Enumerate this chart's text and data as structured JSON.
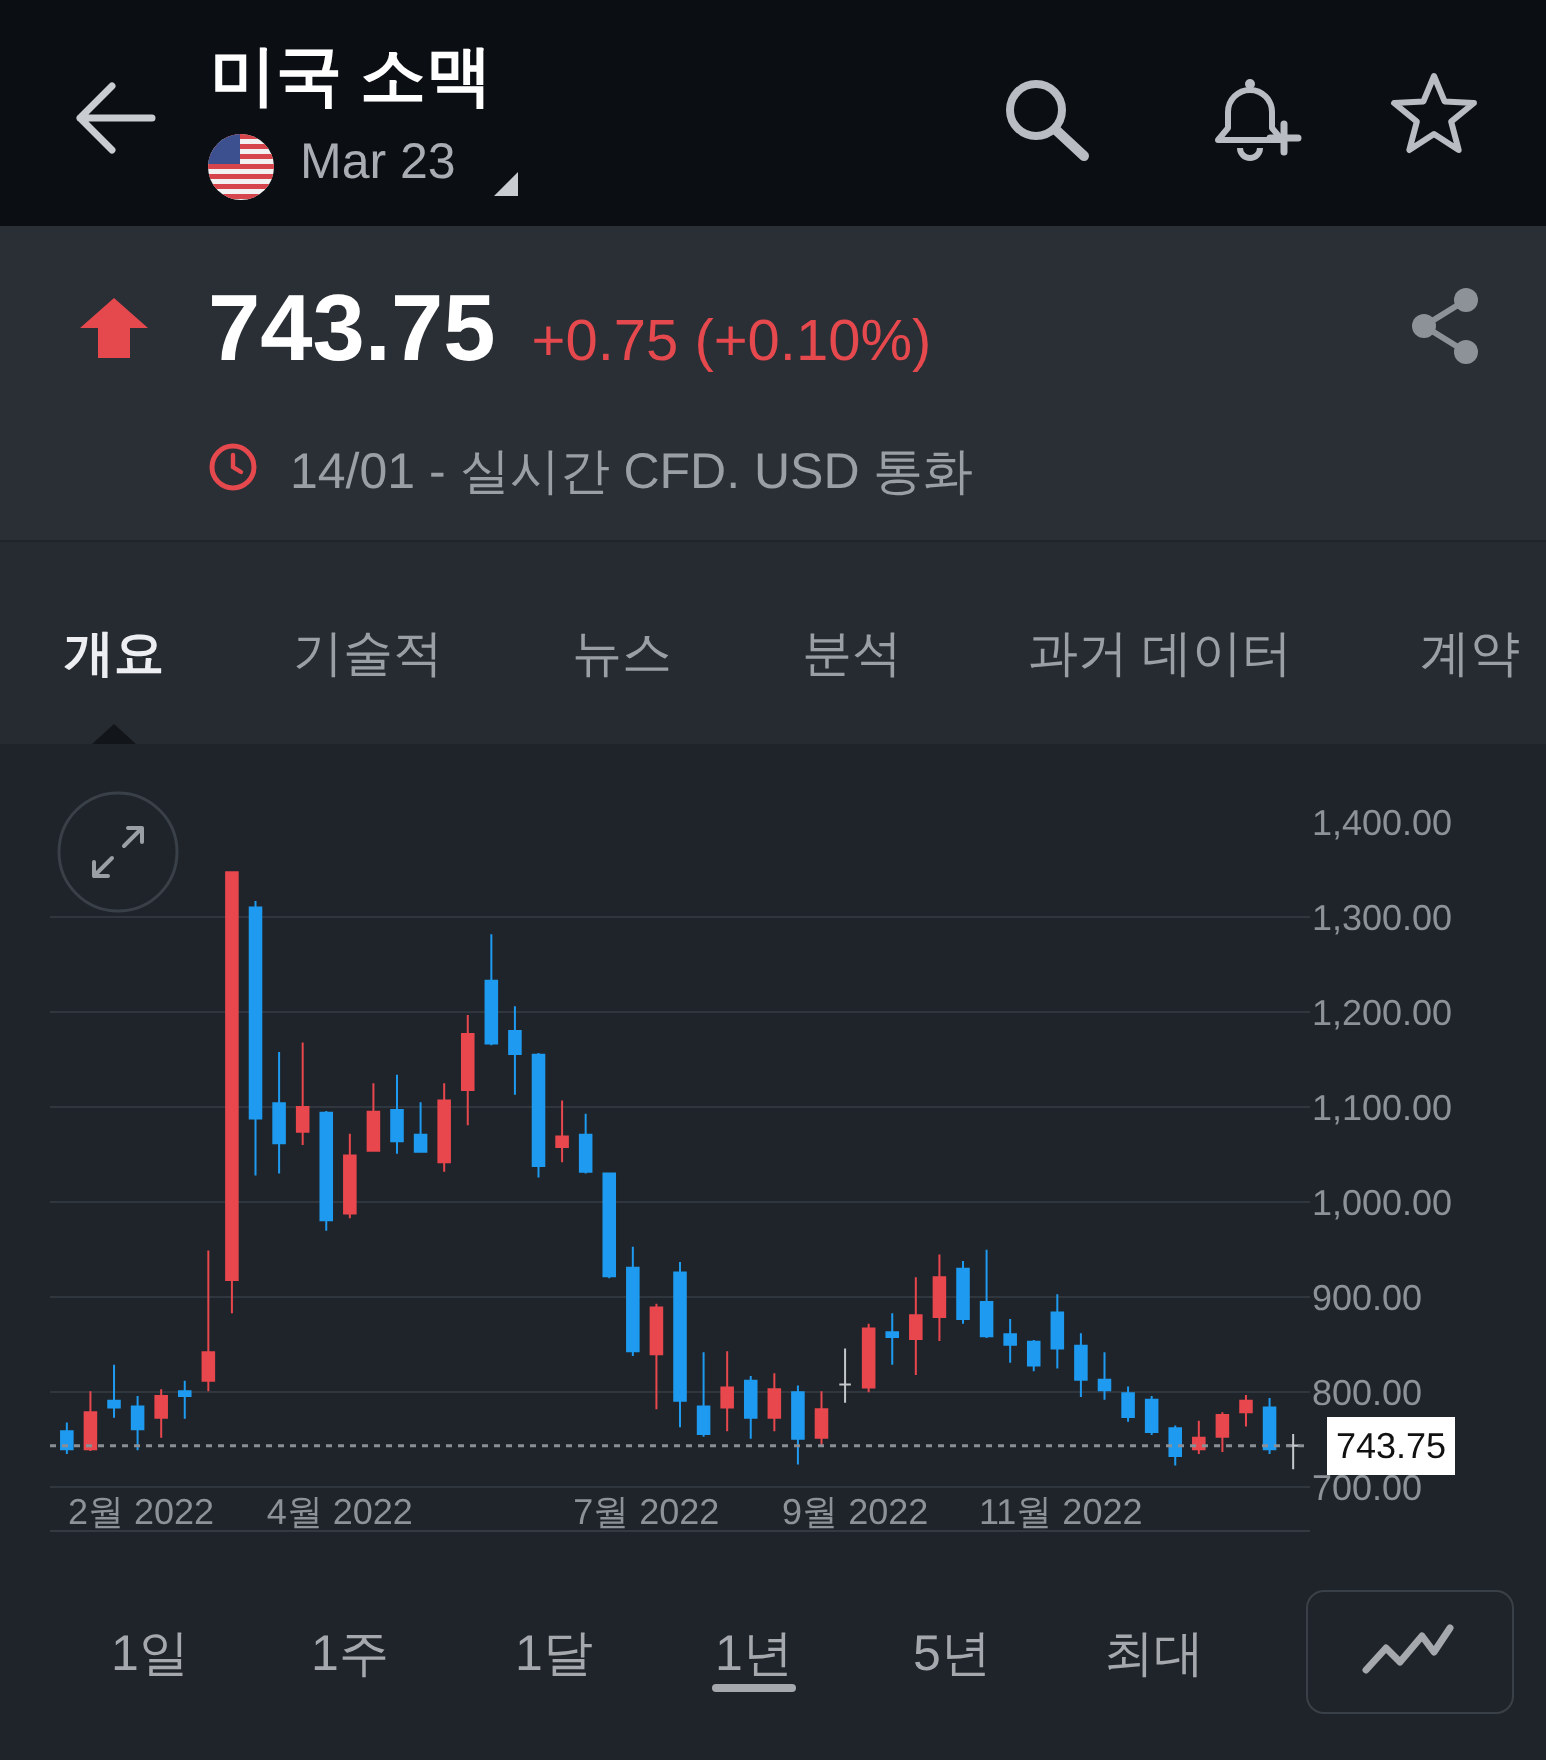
{
  "chart_data": {
    "type": "candlestick",
    "title": "미국 소맥",
    "subtitle": "Mar 23",
    "annotations": [
      "743.75",
      "+0.75 (+0.10%)",
      "14/01 - 실시간 CFD. USD 통화",
      "개요",
      "기술적",
      "뉴스",
      "분석",
      "과거 데이터",
      "계약",
      "1일",
      "1주",
      "1달",
      "1년",
      "5년",
      "최대"
    ],
    "x": [
      "2022-01-10",
      "2022-01-17",
      "2022-01-24",
      "2022-01-31",
      "2022-02-07",
      "2022-02-14",
      "2022-02-21",
      "2022-02-28",
      "2022-03-07",
      "2022-03-14",
      "2022-03-21",
      "2022-03-28",
      "2022-04-04",
      "2022-04-11",
      "2022-04-18",
      "2022-04-25",
      "2022-05-02",
      "2022-05-09",
      "2022-05-16",
      "2022-05-23",
      "2022-05-30",
      "2022-06-06",
      "2022-06-13",
      "2022-06-20",
      "2022-06-27",
      "2022-07-04",
      "2022-07-11",
      "2022-07-18",
      "2022-07-25",
      "2022-08-01",
      "2022-08-08",
      "2022-08-15",
      "2022-08-22",
      "2022-08-29",
      "2022-09-05",
      "2022-09-12",
      "2022-09-19",
      "2022-09-26",
      "2022-10-03",
      "2022-10-10",
      "2022-10-17",
      "2022-10-24",
      "2022-10-31",
      "2022-11-07",
      "2022-11-14",
      "2022-11-21",
      "2022-11-28",
      "2022-12-05",
      "2022-12-12",
      "2022-12-19",
      "2022-12-26",
      "2023-01-02",
      "2023-01-09"
    ],
    "ohlc": [
      [
        759,
        768,
        735,
        740
      ],
      [
        740,
        801,
        738,
        779
      ],
      [
        791,
        829,
        773,
        784
      ],
      [
        785,
        796,
        739,
        761
      ],
      [
        773,
        803,
        752,
        796
      ],
      [
        801,
        812,
        772,
        796
      ],
      [
        812,
        949,
        801,
        842
      ],
      [
        918,
        1347,
        883,
        1347
      ],
      [
        1310,
        1317,
        1028,
        1088
      ],
      [
        1104,
        1158,
        1030,
        1062
      ],
      [
        1074,
        1168,
        1060,
        1100
      ],
      [
        1094,
        1096,
        970,
        981
      ],
      [
        988,
        1072,
        983,
        1049
      ],
      [
        1054,
        1125,
        1053,
        1095
      ],
      [
        1097,
        1134,
        1051,
        1064
      ],
      [
        1071,
        1105,
        1052,
        1053
      ],
      [
        1042,
        1125,
        1032,
        1107
      ],
      [
        1118,
        1197,
        1081,
        1177
      ],
      [
        1233,
        1282,
        1165,
        1167
      ],
      [
        1180,
        1206,
        1113,
        1156
      ],
      [
        1155,
        1157,
        1026,
        1038
      ],
      [
        1058,
        1107,
        1042,
        1069
      ],
      [
        1071,
        1093,
        1030,
        1032
      ],
      [
        1030,
        1031,
        920,
        922
      ],
      [
        931,
        953,
        838,
        843
      ],
      [
        840,
        893,
        782,
        889
      ],
      [
        926,
        937,
        763,
        791
      ],
      [
        785,
        842,
        753,
        756
      ],
      [
        784,
        843,
        759,
        805
      ],
      [
        812,
        817,
        751,
        773
      ],
      [
        773,
        820,
        759,
        803
      ],
      [
        800,
        807,
        724,
        751
      ],
      [
        752,
        801,
        744,
        782
      ],
      [
        808,
        846,
        789,
        808
      ],
      [
        805,
        872,
        800,
        867
      ],
      [
        863,
        883,
        829,
        858
      ],
      [
        856,
        921,
        818,
        881
      ],
      [
        879,
        945,
        854,
        921
      ],
      [
        930,
        938,
        872,
        877
      ],
      [
        895,
        950,
        857,
        859
      ],
      [
        861,
        877,
        831,
        850
      ],
      [
        853,
        855,
        822,
        828
      ],
      [
        884,
        903,
        825,
        846
      ],
      [
        849,
        862,
        795,
        813
      ],
      [
        813,
        842,
        792,
        802
      ],
      [
        799,
        806,
        769,
        774
      ],
      [
        792,
        796,
        755,
        758
      ],
      [
        762,
        765,
        723,
        733
      ],
      [
        740,
        770,
        735,
        752
      ],
      [
        753,
        779,
        737,
        776
      ],
      [
        779,
        797,
        764,
        791
      ],
      [
        784,
        794,
        735,
        740
      ],
      [
        744,
        756,
        719,
        743.75
      ]
    ],
    "colors": [
      "#1e9bf0",
      "#e8474d",
      "#1e9bf0",
      "#1e9bf0",
      "#e8474d",
      "#1e9bf0",
      "#e8474d",
      "#e8474d",
      "#1e9bf0",
      "#1e9bf0",
      "#e8474d",
      "#1e9bf0",
      "#e8474d",
      "#e8474d",
      "#1e9bf0",
      "#1e9bf0",
      "#e8474d",
      "#e8474d",
      "#1e9bf0",
      "#1e9bf0",
      "#1e9bf0",
      "#e8474d",
      "#1e9bf0",
      "#1e9bf0",
      "#1e9bf0",
      "#e8474d",
      "#1e9bf0",
      "#1e9bf0",
      "#e8474d",
      "#1e9bf0",
      "#e8474d",
      "#1e9bf0",
      "#e8474d",
      "#c4c8cc",
      "#e8474d",
      "#1e9bf0",
      "#e8474d",
      "#e8474d",
      "#1e9bf0",
      "#1e9bf0",
      "#1e9bf0",
      "#1e9bf0",
      "#1e9bf0",
      "#1e9bf0",
      "#1e9bf0",
      "#1e9bf0",
      "#1e9bf0",
      "#1e9bf0",
      "#e8474d",
      "#e8474d",
      "#e8474d",
      "#1e9bf0",
      "#c4c8cc"
    ],
    "xlim": [
      "2022-01-05",
      "2023-01-14"
    ],
    "xticks": [
      {
        "value": "2022-02-01",
        "label": "2월 2022"
      },
      {
        "value": "2022-04-01",
        "label": "4월 2022"
      },
      {
        "value": "2022-07-01",
        "label": "7월 2022"
      },
      {
        "value": "2022-09-01",
        "label": "9월 2022"
      },
      {
        "value": "2022-11-01",
        "label": "11월 2022"
      }
    ],
    "ylim": [
      655,
      1400
    ],
    "yticks": [
      {
        "value": 700,
        "label": "700.00"
      },
      {
        "value": 800,
        "label": "800.00"
      },
      {
        "value": 900,
        "label": "900.00"
      },
      {
        "value": 1000,
        "label": "1,000.00"
      },
      {
        "value": 1100,
        "label": "1,100.00"
      },
      {
        "value": 1200,
        "label": "1,200.00"
      },
      {
        "value": 1300,
        "label": "1,300.00"
      },
      {
        "value": 1400,
        "label": "1,400.00"
      }
    ],
    "grid": "y",
    "ref_lines": [
      {
        "axis": "y",
        "value": 743.75,
        "label": "743.75",
        "line_style": "dotted",
        "color": "#8a8f96"
      }
    ]
  }
}
